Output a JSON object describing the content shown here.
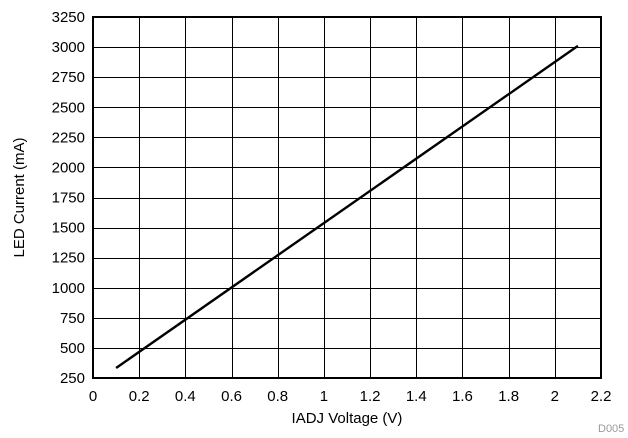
{
  "chart_data": {
    "type": "line",
    "title": "",
    "xlabel": "IADJ Voltage (V)",
    "ylabel": "LED Current (mA)",
    "xlim": [
      0,
      2.2
    ],
    "ylim": [
      250,
      3250
    ],
    "x_ticks": [
      0,
      0.2,
      0.4,
      0.6,
      0.8,
      1,
      1.2,
      1.4,
      1.6,
      1.8,
      2,
      2.2
    ],
    "y_ticks": [
      250,
      500,
      750,
      1000,
      1250,
      1500,
      1750,
      2000,
      2250,
      2500,
      2750,
      3000,
      3250
    ],
    "grid": true,
    "legend": "none",
    "series": [
      {
        "color": "#000000",
        "x": [
          0.1,
          2.1
        ],
        "y": [
          333,
          3010
        ]
      }
    ],
    "id_label": "D005"
  }
}
